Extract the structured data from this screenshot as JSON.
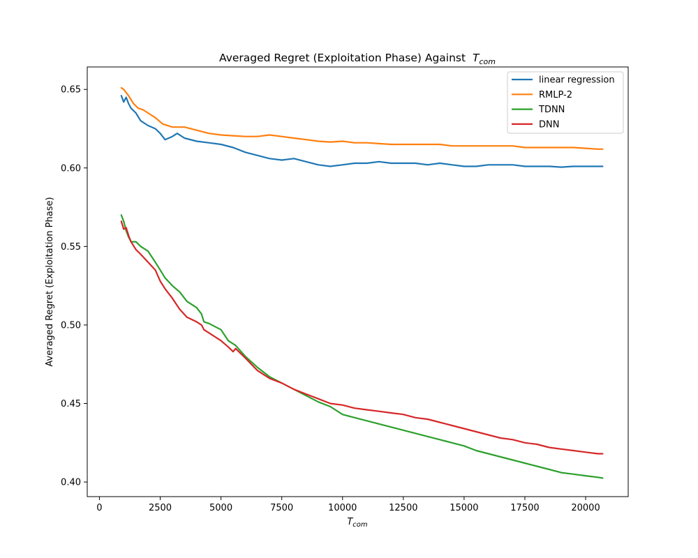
{
  "chart_data": {
    "type": "line",
    "title": "Averaged Regret (Exploitation Phase) Against",
    "title_math": {
      "base": "T",
      "sub": "com"
    },
    "xlabel": {
      "base": "T",
      "sub": "com"
    },
    "ylabel": "Averaged Regret (Exploitation Phase)",
    "xlim": [
      -500,
      21750
    ],
    "ylim": [
      0.3907,
      0.6643
    ],
    "xticks": [
      0,
      2500,
      5000,
      7500,
      10000,
      12500,
      15000,
      17500,
      20000
    ],
    "yticks": [
      0.4,
      0.45,
      0.5,
      0.55,
      0.6,
      0.65
    ],
    "xtick_labels": [
      "0",
      "2500",
      "5000",
      "7500",
      "10000",
      "12500",
      "15000",
      "17500",
      "20000"
    ],
    "ytick_labels": [
      "0.40",
      "0.45",
      "0.50",
      "0.55",
      "0.60",
      "0.65"
    ],
    "legend_position": "upper-right",
    "grid": false,
    "series": [
      {
        "name": "linear regression",
        "color": "#1f77b4",
        "x": [
          900,
          1000,
          1100,
          1200,
          1300,
          1500,
          1700,
          2000,
          2300,
          2500,
          2700,
          3000,
          3200,
          3500,
          4000,
          4500,
          5000,
          5500,
          6000,
          6500,
          7000,
          7500,
          8000,
          8500,
          9000,
          9500,
          10000,
          10500,
          11000,
          11500,
          12000,
          12500,
          13000,
          13500,
          14000,
          14500,
          15000,
          15500,
          16000,
          16500,
          17000,
          17500,
          18000,
          18500,
          19000,
          19500,
          20000,
          20500,
          20700
        ],
        "y": [
          0.646,
          0.642,
          0.645,
          0.641,
          0.638,
          0.635,
          0.63,
          0.627,
          0.625,
          0.622,
          0.618,
          0.62,
          0.622,
          0.619,
          0.617,
          0.616,
          0.615,
          0.613,
          0.61,
          0.608,
          0.606,
          0.605,
          0.606,
          0.604,
          0.602,
          0.601,
          0.602,
          0.603,
          0.603,
          0.604,
          0.603,
          0.603,
          0.603,
          0.602,
          0.603,
          0.602,
          0.601,
          0.601,
          0.602,
          0.602,
          0.602,
          0.601,
          0.601,
          0.601,
          0.6005,
          0.601,
          0.601,
          0.601,
          0.601
        ]
      },
      {
        "name": "RMLP-2",
        "color": "#ff7f0e",
        "x": [
          900,
          1000,
          1200,
          1400,
          1600,
          1800,
          2000,
          2300,
          2600,
          3000,
          3500,
          4000,
          4500,
          5000,
          5500,
          6000,
          6500,
          7000,
          7500,
          8000,
          8500,
          9000,
          9500,
          10000,
          10500,
          11000,
          11500,
          12000,
          12500,
          13000,
          13500,
          14000,
          14500,
          15000,
          15500,
          16000,
          16500,
          17000,
          17500,
          18000,
          18500,
          19000,
          19500,
          20000,
          20500,
          20700
        ],
        "y": [
          0.651,
          0.65,
          0.646,
          0.641,
          0.638,
          0.637,
          0.635,
          0.632,
          0.628,
          0.626,
          0.626,
          0.624,
          0.622,
          0.621,
          0.6205,
          0.62,
          0.62,
          0.621,
          0.62,
          0.619,
          0.618,
          0.617,
          0.6165,
          0.617,
          0.616,
          0.616,
          0.6155,
          0.615,
          0.615,
          0.615,
          0.615,
          0.615,
          0.614,
          0.614,
          0.614,
          0.614,
          0.614,
          0.614,
          0.613,
          0.613,
          0.613,
          0.613,
          0.613,
          0.6125,
          0.612,
          0.612
        ]
      },
      {
        "name": "TDNN",
        "color": "#2ca02c",
        "x": [
          900,
          950,
          1000,
          1100,
          1200,
          1300,
          1500,
          1700,
          2000,
          2300,
          2500,
          2700,
          3000,
          3300,
          3600,
          4000,
          4200,
          4300,
          4500,
          5000,
          5300,
          5500,
          5600,
          6000,
          6500,
          7000,
          7500,
          8000,
          8500,
          9000,
          9500,
          10000,
          10500,
          11000,
          11500,
          12000,
          12500,
          13000,
          13500,
          14000,
          14500,
          15000,
          15500,
          16000,
          16500,
          17000,
          17500,
          18000,
          18500,
          19000,
          19500,
          20000,
          20500,
          20700
        ],
        "y": [
          0.57,
          0.568,
          0.566,
          0.56,
          0.556,
          0.553,
          0.553,
          0.55,
          0.547,
          0.54,
          0.535,
          0.53,
          0.525,
          0.521,
          0.515,
          0.511,
          0.507,
          0.502,
          0.501,
          0.497,
          0.49,
          0.488,
          0.487,
          0.48,
          0.473,
          0.467,
          0.463,
          0.459,
          0.455,
          0.451,
          0.448,
          0.443,
          0.441,
          0.439,
          0.437,
          0.435,
          0.433,
          0.431,
          0.429,
          0.427,
          0.425,
          0.423,
          0.42,
          0.418,
          0.416,
          0.414,
          0.412,
          0.41,
          0.408,
          0.406,
          0.405,
          0.404,
          0.403,
          0.4025
        ]
      },
      {
        "name": "DNN",
        "color": "#d62728",
        "x": [
          900,
          1000,
          1100,
          1200,
          1300,
          1500,
          1700,
          2000,
          2300,
          2500,
          2700,
          3000,
          3300,
          3600,
          4000,
          4200,
          4300,
          4500,
          5000,
          5300,
          5500,
          5600,
          6000,
          6500,
          7000,
          7500,
          8000,
          8500,
          9000,
          9500,
          10000,
          10500,
          11000,
          11500,
          12000,
          12500,
          13000,
          13500,
          14000,
          14500,
          15000,
          15500,
          16000,
          16500,
          17000,
          17500,
          18000,
          18500,
          19000,
          19500,
          20000,
          20500,
          20700
        ],
        "y": [
          0.566,
          0.561,
          0.562,
          0.557,
          0.553,
          0.548,
          0.545,
          0.54,
          0.535,
          0.528,
          0.523,
          0.517,
          0.51,
          0.505,
          0.502,
          0.5,
          0.497,
          0.495,
          0.49,
          0.486,
          0.483,
          0.485,
          0.479,
          0.471,
          0.466,
          0.463,
          0.459,
          0.456,
          0.453,
          0.45,
          0.449,
          0.447,
          0.446,
          0.445,
          0.444,
          0.443,
          0.441,
          0.44,
          0.438,
          0.436,
          0.434,
          0.432,
          0.43,
          0.428,
          0.427,
          0.425,
          0.424,
          0.422,
          0.421,
          0.42,
          0.419,
          0.418,
          0.418
        ]
      }
    ]
  }
}
